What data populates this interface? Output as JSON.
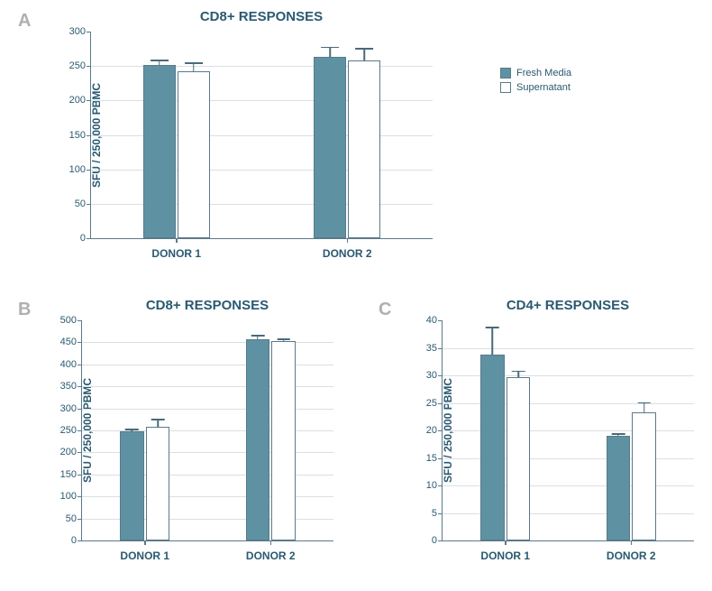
{
  "legend": {
    "items": [
      {
        "label": "Fresh Media",
        "fill": "#5e92a3",
        "border": "#5a7a8a"
      },
      {
        "label": "Supernatant",
        "fill": "#ffffff",
        "border": "#5a7a8a"
      }
    ]
  },
  "colors": {
    "bar_fill": "#5e92a3",
    "bar_border": "#5a7a8a",
    "axis": "#5a7a8a",
    "grid": "#d8e0e4",
    "text": "#2a5970",
    "panel_label": "#b0b0b0",
    "background": "#ffffff"
  },
  "panelA": {
    "label": "A",
    "title": "CD8+ RESPONSES",
    "ylabel": "SFU / 250,000 PBMC",
    "ylim": [
      0,
      300
    ],
    "ytick_step": 50,
    "bar_width": 0.38,
    "categories": [
      "DONOR 1",
      "DONOR 2"
    ],
    "series": [
      {
        "name": "Fresh Media",
        "values": [
          251,
          263
        ],
        "err": [
          8,
          15
        ]
      },
      {
        "name": "Supernatant",
        "values": [
          242,
          258
        ],
        "err": [
          13,
          18
        ]
      }
    ],
    "type": "bar"
  },
  "panelB": {
    "label": "B",
    "title": "CD8+ RESPONSES",
    "ylabel": "SFU / 250,000 PBMC",
    "ylim": [
      0,
      500
    ],
    "ytick_step": 50,
    "bar_width": 0.38,
    "categories": [
      "DONOR 1",
      "DONOR 2"
    ],
    "series": [
      {
        "name": "Fresh Media",
        "values": [
          248,
          457
        ],
        "err": [
          6,
          10
        ]
      },
      {
        "name": "Supernatant",
        "values": [
          258,
          452
        ],
        "err": [
          18,
          6
        ]
      }
    ],
    "type": "bar"
  },
  "panelC": {
    "label": "C",
    "title": "CD4+ RESPONSES",
    "ylabel": "SFU / 250,000 PBMC",
    "ylim": [
      0,
      40
    ],
    "ytick_step": 5,
    "bar_width": 0.38,
    "categories": [
      "DONOR 1",
      "DONOR 2"
    ],
    "series": [
      {
        "name": "Fresh Media",
        "values": [
          33.8,
          19.0
        ],
        "err": [
          5.0,
          0.5
        ]
      },
      {
        "name": "Supernatant",
        "values": [
          29.7,
          23.3
        ],
        "err": [
          1.2,
          1.8
        ]
      }
    ],
    "type": "bar"
  },
  "fonts": {
    "title_size_pt": 15,
    "label_size_pt": 12,
    "tick_size_pt": 11,
    "panel_label_size_pt": 20,
    "family": "Arial"
  }
}
